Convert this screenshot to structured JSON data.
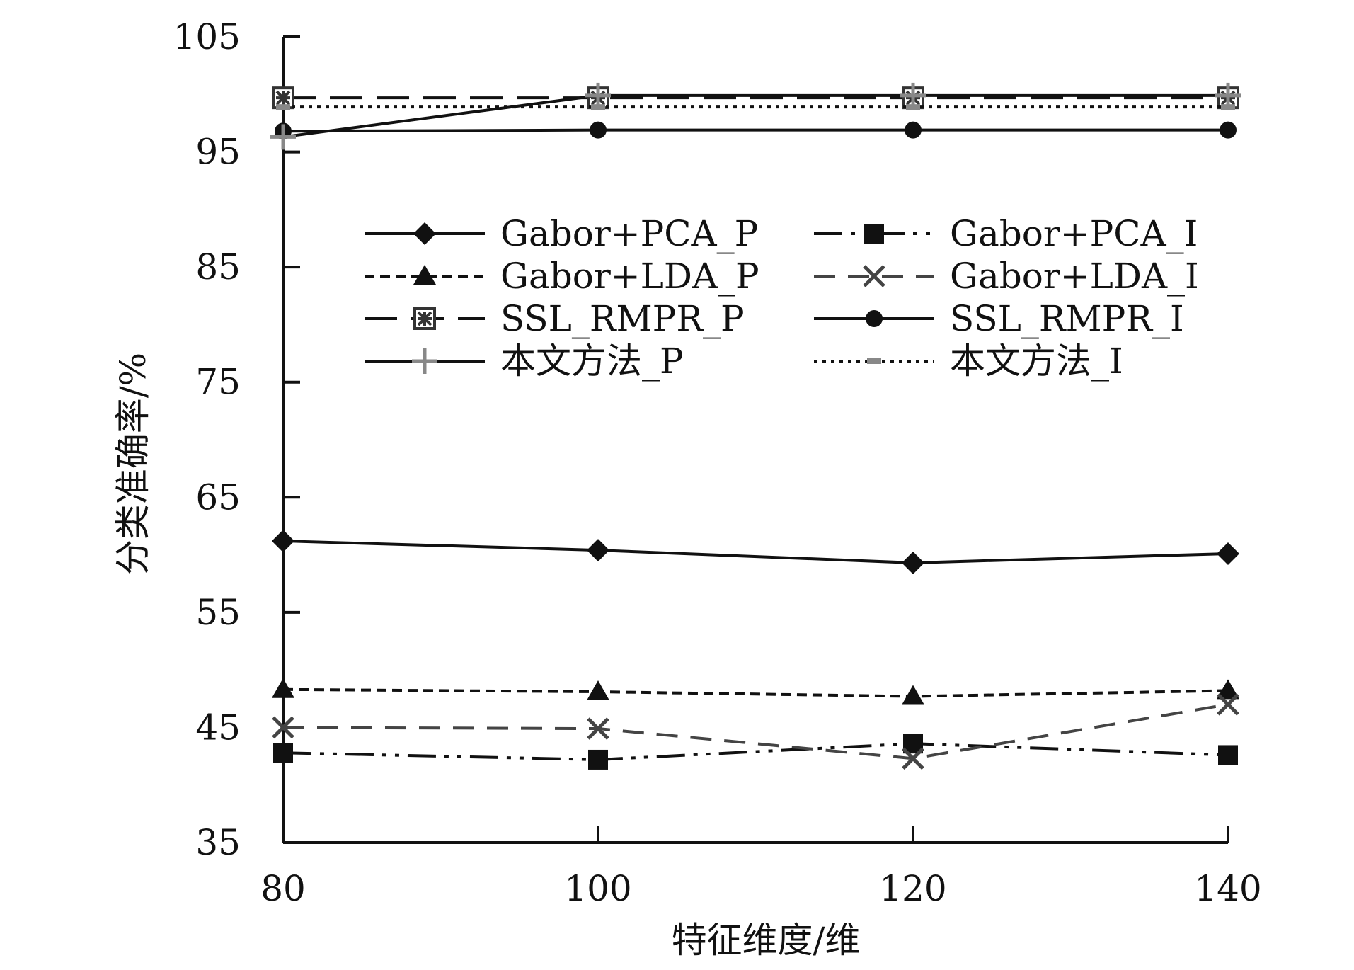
{
  "chart_data": {
    "type": "line",
    "title": "",
    "xlabel": "特征维度/维",
    "ylabel": "分类准确率/%",
    "x": [
      80,
      100,
      120,
      140
    ],
    "xticks": [
      "80",
      "100",
      "120",
      "140"
    ],
    "yticks": [
      "35",
      "45",
      "55",
      "65",
      "75",
      "85",
      "95",
      "105"
    ],
    "xlim": [
      80,
      140
    ],
    "ylim": [
      35,
      105
    ],
    "grid": false,
    "legend_position": "upper-center, two columns",
    "series": [
      {
        "name": "Gabor+PCA_P",
        "values": [
          61.2,
          60.4,
          59.3,
          60.1
        ],
        "color": "#111111",
        "dash": "solid",
        "marker": "diamond"
      },
      {
        "name": "Gabor+PCA_I",
        "values": [
          42.8,
          42.2,
          43.6,
          42.6
        ],
        "color": "#111111",
        "dash": "dashdotdot",
        "marker": "square"
      },
      {
        "name": "Gabor+LDA_P",
        "values": [
          48.3,
          48.1,
          47.7,
          48.2
        ],
        "color": "#111111",
        "dash": "dotted-dash",
        "marker": "triangle"
      },
      {
        "name": "Gabor+LDA_I",
        "values": [
          45.0,
          44.9,
          42.3,
          47.0
        ],
        "color": "#444444",
        "dash": "dashed",
        "marker": "x"
      },
      {
        "name": "SSL_RMPR_P",
        "values": [
          99.7,
          99.7,
          99.7,
          99.7
        ],
        "color": "#111111",
        "dash": "longdash",
        "marker": "boxed-star"
      },
      {
        "name": "SSL_RMPR_I",
        "values": [
          96.8,
          96.9,
          96.9,
          96.9
        ],
        "color": "#111111",
        "dash": "solid",
        "marker": "circle"
      },
      {
        "name": "本文方法_P",
        "values": [
          96.3,
          99.9,
          99.9,
          99.9
        ],
        "color": "#111111",
        "dash": "solid",
        "marker": "plus"
      },
      {
        "name": "本文方法_I",
        "values": [
          98.9,
          98.9,
          98.9,
          98.9
        ],
        "color": "#111111",
        "dash": "dotted",
        "marker": "dash"
      }
    ]
  }
}
